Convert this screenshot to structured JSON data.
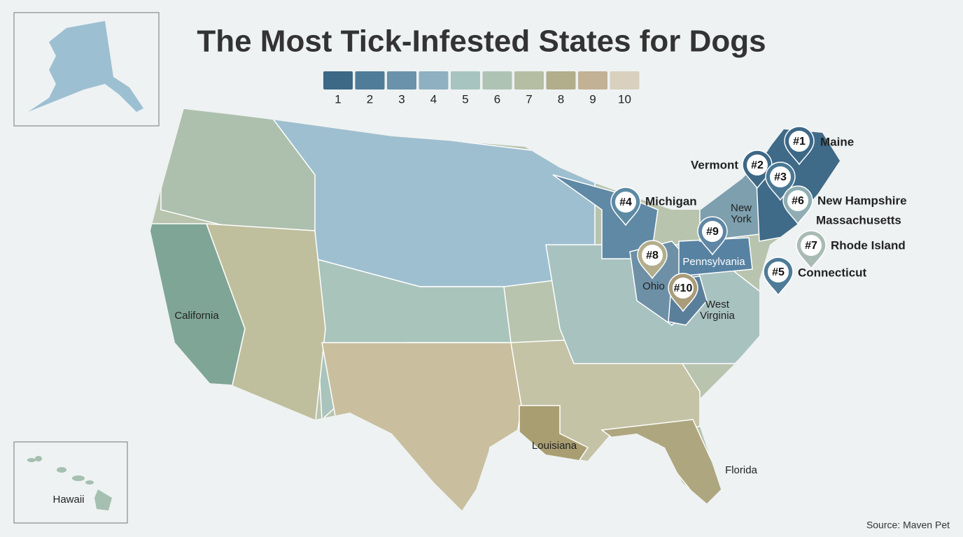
{
  "title": "The Most Tick-Infested States for Dogs",
  "legend": {
    "items": [
      {
        "label": "1",
        "color": "#3d6886"
      },
      {
        "label": "2",
        "color": "#4f7c98"
      },
      {
        "label": "3",
        "color": "#6a92aa"
      },
      {
        "label": "4",
        "color": "#8fb0c0"
      },
      {
        "label": "5",
        "color": "#a7c4c0"
      },
      {
        "label": "6",
        "color": "#aec3b4"
      },
      {
        "label": "7",
        "color": "#b5bea3"
      },
      {
        "label": "8",
        "color": "#b2ad8a"
      },
      {
        "label": "9",
        "color": "#c3b196"
      },
      {
        "label": "10",
        "color": "#d9d1bd"
      }
    ]
  },
  "markers": [
    {
      "rank": "#1",
      "color": "#3d6886"
    },
    {
      "rank": "#2",
      "color": "#3d6886"
    },
    {
      "rank": "#3",
      "color": "#4a7894"
    },
    {
      "rank": "#4",
      "color": "#5d8aa3"
    },
    {
      "rank": "#5",
      "color": "#4e7b97"
    },
    {
      "rank": "#6",
      "color": "#8fadb2"
    },
    {
      "rank": "#7",
      "color": "#a9bcb4"
    },
    {
      "rank": "#8",
      "color": "#b2ad8c"
    },
    {
      "rank": "#9",
      "color": "#5f86a3"
    },
    {
      "rank": "#10",
      "color": "#a99c7a"
    }
  ],
  "place_labels": [
    {
      "lines": [
        "Maine"
      ]
    },
    {
      "lines": [
        "Vermont"
      ]
    },
    {
      "lines": [
        "Michigan"
      ]
    },
    {
      "lines": [
        "New Hampshire"
      ]
    },
    {
      "lines": [
        "Massachusetts"
      ]
    },
    {
      "lines": [
        "Rhode Island"
      ]
    },
    {
      "lines": [
        "Connecticut"
      ]
    },
    {
      "lines": [
        "New",
        "York"
      ]
    },
    {
      "lines": [
        "Pennsylvania"
      ]
    },
    {
      "lines": [
        "Ohio"
      ]
    },
    {
      "lines": [
        "West",
        "Virginia"
      ]
    },
    {
      "lines": [
        "California"
      ]
    },
    {
      "lines": [
        "Louisiana"
      ]
    },
    {
      "lines": [
        "Florida"
      ]
    },
    {
      "lines": [
        "Hawaii"
      ]
    }
  ],
  "source": "Source: Maven Pet"
}
